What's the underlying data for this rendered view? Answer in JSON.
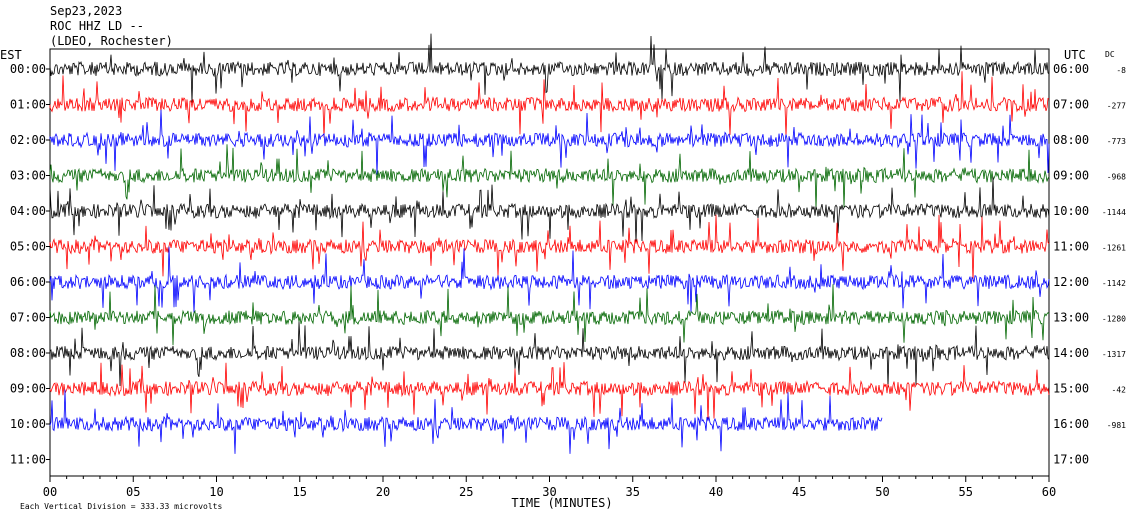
{
  "header": {
    "date": "Sep23,2023",
    "station": "ROC HHZ LD --",
    "location": "(LDEO, Rochester)"
  },
  "footer": {
    "scale_note": "Each Vertical Division = 333.33 microvolts",
    "x_axis_title": "TIME (MINUTES)"
  },
  "chart_data": {
    "type": "line",
    "title": "",
    "xlabel": "TIME (MINUTES)",
    "ylabel": "",
    "x_ticks": [
      "00",
      "05",
      "10",
      "15",
      "20",
      "25",
      "30",
      "35",
      "40",
      "45",
      "50",
      "55",
      "60"
    ],
    "xlim": [
      0,
      60
    ],
    "left_axis_label": "EST",
    "right_axis_label": "UTC",
    "dc_label": "DC",
    "rows": [
      {
        "est": "00:00",
        "utc": "06:00",
        "dc": "-8",
        "color": "#000000",
        "end_minute": 60
      },
      {
        "est": "01:00",
        "utc": "07:00",
        "dc": "-277",
        "color": "#ff0000",
        "end_minute": 60
      },
      {
        "est": "02:00",
        "utc": "08:00",
        "dc": "-773",
        "color": "#0000ff",
        "end_minute": 60
      },
      {
        "est": "03:00",
        "utc": "09:00",
        "dc": "-968",
        "color": "#006600",
        "end_minute": 60
      },
      {
        "est": "04:00",
        "utc": "10:00",
        "dc": "-1144",
        "color": "#000000",
        "end_minute": 60
      },
      {
        "est": "05:00",
        "utc": "11:00",
        "dc": "-1261",
        "color": "#ff0000",
        "end_minute": 60
      },
      {
        "est": "06:00",
        "utc": "12:00",
        "dc": "-1142",
        "color": "#0000ff",
        "end_minute": 60
      },
      {
        "est": "07:00",
        "utc": "13:00",
        "dc": "-1280",
        "color": "#006600",
        "end_minute": 60
      },
      {
        "est": "08:00",
        "utc": "14:00",
        "dc": "-1317",
        "color": "#000000",
        "end_minute": 60
      },
      {
        "est": "09:00",
        "utc": "15:00",
        "dc": "-42",
        "color": "#ff0000",
        "end_minute": 60
      },
      {
        "est": "10:00",
        "utc": "16:00",
        "dc": "-981",
        "color": "#0000ff",
        "end_minute": 50
      },
      {
        "est": "11:00",
        "utc": "17:00",
        "dc": "",
        "color": "#006600",
        "end_minute": 0
      }
    ]
  }
}
